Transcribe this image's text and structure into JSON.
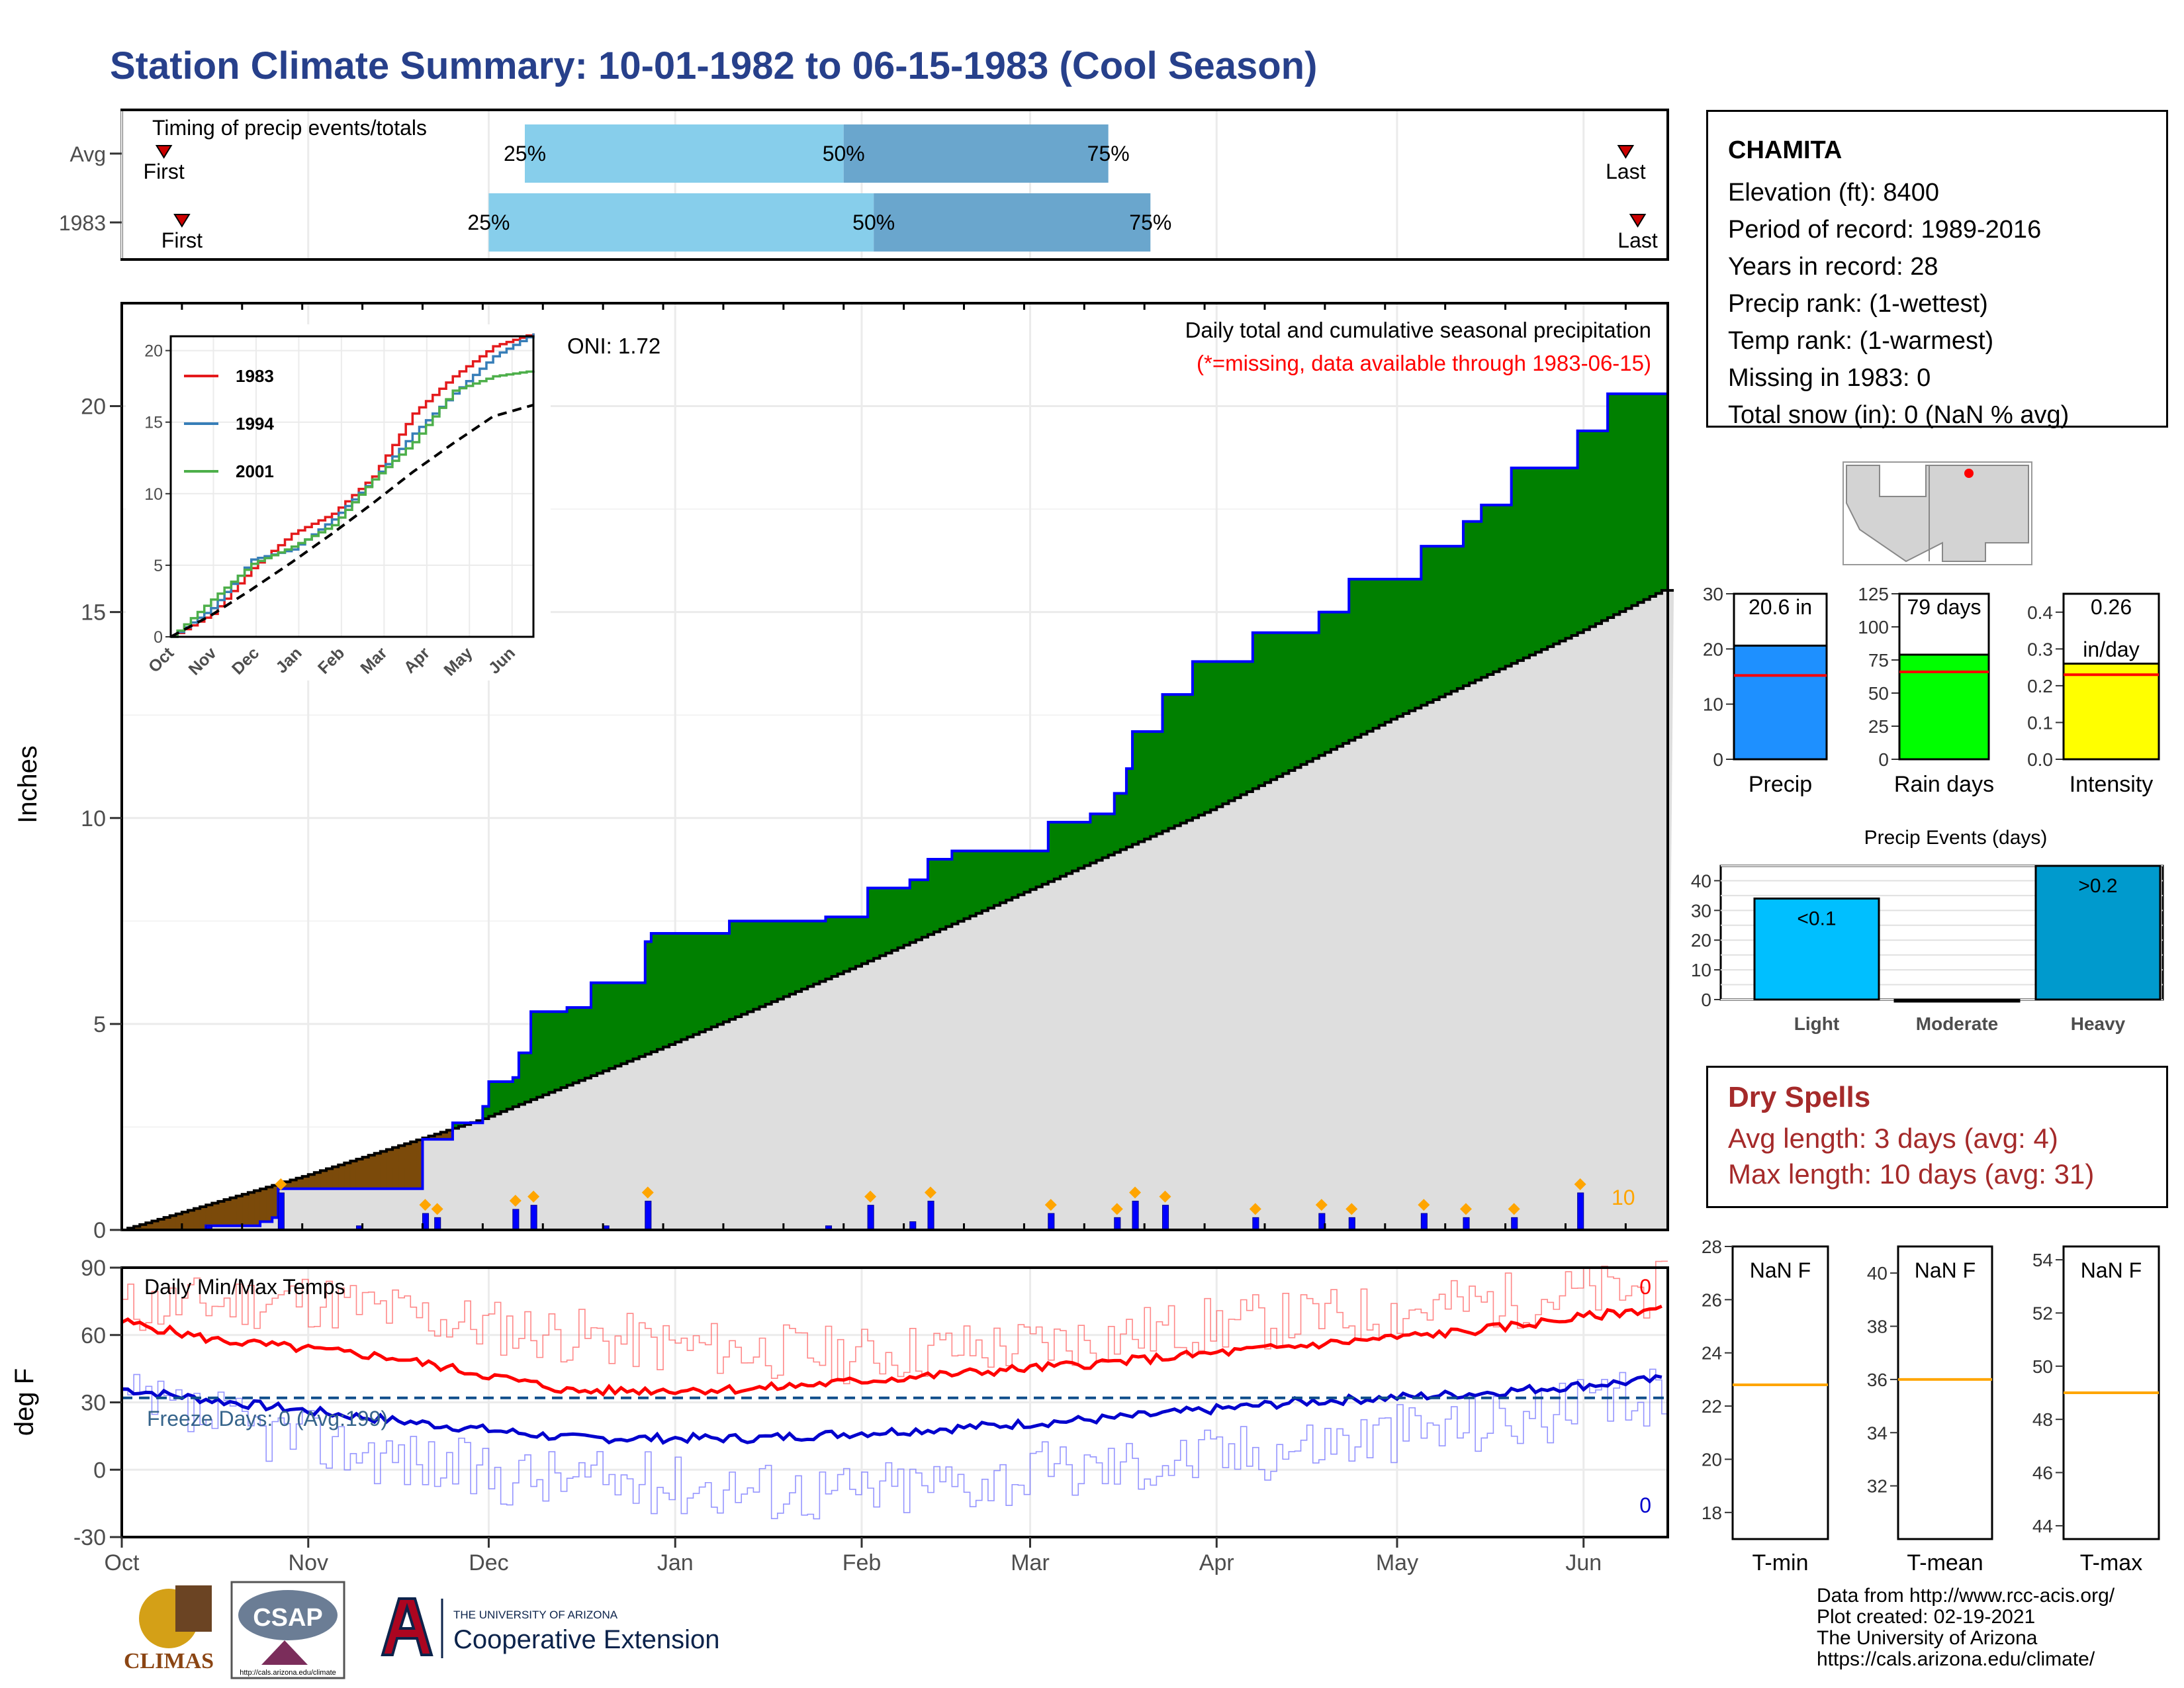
{
  "title": "Station Climate Summary: 10-01-1982 to 06-15-1983 (Cool Season)",
  "station": {
    "name": "CHAMITA",
    "lines": [
      "Elevation (ft): 8400",
      "Period of record: 1989-2016",
      "Years in record: 28",
      "Precip rank:  (1-wettest)",
      "Temp rank:  (1-warmest)",
      "Missing in 1983: 0",
      "Total snow (in): 0 (NaN % avg)"
    ]
  },
  "dry_spells": {
    "title": "Dry Spells",
    "avg": "Avg length: 3 days (avg: 4)",
    "max": "Max length: 10 days (avg: 31)"
  },
  "credits": [
    "Data from http://www.rcc-acis.org/",
    "Plot created: 02-19-2021",
    "The University of Arizona",
    "https://cals.arizona.edu/climate/"
  ],
  "logos": {
    "climas": "CLIMAS",
    "csap": "CSAP",
    "csap_url": "http://cals.arizona.edu/climate",
    "ua_small": "THE UNIVERSITY OF ARIZONA",
    "ua_big": "Cooperative Extension"
  },
  "colors": {
    "title": "#27408b",
    "green": "#008000",
    "brown": "#7b4a0a",
    "cumBlue": "#0000ff",
    "normGray": "#dedede",
    "red": "#ff0000",
    "dryRed": "#a52a2a",
    "lightBlue": "#87ceeb",
    "midBlue": "#6aa6cd",
    "precipBar": "#1e90ff",
    "rainBar": "#00ff00",
    "intBar": "#ffff00",
    "lightEv": "#00bfff",
    "heavyEv": "#009acd",
    "orange": "#ffa500"
  },
  "chart_data": [
    {
      "id": "timing",
      "type": "bar",
      "panel_title": "Timing of precip events/totals",
      "rows": [
        {
          "label": "Avg",
          "first": "10-08",
          "p25": "12-07",
          "p50": "01-29",
          "p75": "03-14",
          "last": "06-08",
          "first_label": "First",
          "last_label": "Last",
          "pct_labels": [
            "25%",
            "50%",
            "75%"
          ]
        },
        {
          "label": "1983",
          "first": "10-11",
          "p25": "12-01",
          "p50": "02-03",
          "p75": "03-21",
          "last": "06-10",
          "first_label": "First",
          "last_label": "Last",
          "pct_labels": [
            "25%",
            "50%",
            "75%"
          ]
        }
      ]
    },
    {
      "id": "cumulative",
      "type": "area",
      "title": "Daily total and cumulative seasonal precipitation",
      "subtitle": "(*=missing, data available through 1983-06-15)",
      "ylabel": "Inches",
      "ylim": [
        0,
        22.5
      ],
      "yticks": [
        0,
        5,
        10,
        15,
        20
      ],
      "xticks": [
        "Oct",
        "Nov",
        "Dec",
        "Jan",
        "Feb",
        "Mar",
        "Apr",
        "May",
        "Jun"
      ],
      "oni": "ONI: 1.72",
      "snow_marker_label": "10",
      "observed_cumulative": [
        [
          "10-01",
          0
        ],
        [
          "10-15",
          0.1
        ],
        [
          "10-24",
          0.2
        ],
        [
          "10-26",
          0.3
        ],
        [
          "10-27",
          1.0
        ],
        [
          "11-09",
          1.0
        ],
        [
          "11-16",
          1.0
        ],
        [
          "11-20",
          2.2
        ],
        [
          "11-25",
          2.6
        ],
        [
          "11-30",
          3.0
        ],
        [
          "12-01",
          3.6
        ],
        [
          "12-05",
          3.7
        ],
        [
          "12-06",
          4.3
        ],
        [
          "12-08",
          5.3
        ],
        [
          "12-14",
          5.4
        ],
        [
          "12-18",
          6.0
        ],
        [
          "12-26",
          6.0
        ],
        [
          "12-27",
          7.0
        ],
        [
          "12-28",
          7.2
        ],
        [
          "01-10",
          7.5
        ],
        [
          "01-26",
          7.6
        ],
        [
          "02-02",
          8.3
        ],
        [
          "02-09",
          8.5
        ],
        [
          "02-12",
          9.0
        ],
        [
          "02-16",
          9.2
        ],
        [
          "03-04",
          9.9
        ],
        [
          "03-11",
          10.1
        ],
        [
          "03-15",
          10.6
        ],
        [
          "03-17",
          11.2
        ],
        [
          "03-18",
          12.1
        ],
        [
          "03-23",
          13.0
        ],
        [
          "03-28",
          13.8
        ],
        [
          "04-07",
          14.5
        ],
        [
          "04-18",
          15.0
        ],
        [
          "04-23",
          15.8
        ],
        [
          "05-05",
          16.6
        ],
        [
          "05-12",
          17.2
        ],
        [
          "05-15",
          17.6
        ],
        [
          "05-20",
          18.5
        ],
        [
          "05-31",
          19.4
        ],
        [
          "06-05",
          20.3
        ],
        [
          "06-15",
          20.6
        ]
      ],
      "normal_cumulative": [
        [
          "10-01",
          0
        ],
        [
          "10-31",
          1.3
        ],
        [
          "11-30",
          2.7
        ],
        [
          "12-31",
          4.5
        ],
        [
          "01-31",
          6.4
        ],
        [
          "02-28",
          8.2
        ],
        [
          "03-31",
          10.2
        ],
        [
          "04-30",
          12.4
        ],
        [
          "05-31",
          14.5
        ],
        [
          "06-15",
          15.6
        ]
      ],
      "daily_bars": [
        [
          "10-15",
          0.1
        ],
        [
          "10-27",
          0.9
        ],
        [
          "11-09",
          0.1
        ],
        [
          "11-20",
          0.4
        ],
        [
          "11-22",
          0.3
        ],
        [
          "12-05",
          0.5
        ],
        [
          "12-08",
          0.6
        ],
        [
          "12-20",
          0.1
        ],
        [
          "12-27",
          0.7
        ],
        [
          "01-26",
          0.1
        ],
        [
          "02-02",
          0.6
        ],
        [
          "02-09",
          0.2
        ],
        [
          "02-12",
          0.7
        ],
        [
          "03-04",
          0.4
        ],
        [
          "03-15",
          0.3
        ],
        [
          "03-18",
          0.7
        ],
        [
          "03-23",
          0.6
        ],
        [
          "04-07",
          0.3
        ],
        [
          "04-18",
          0.4
        ],
        [
          "04-23",
          0.3
        ],
        [
          "05-05",
          0.4
        ],
        [
          "05-12",
          0.3
        ],
        [
          "05-20",
          0.3
        ],
        [
          "05-31",
          0.9
        ]
      ]
    },
    {
      "id": "inset",
      "type": "line",
      "ylim": [
        0,
        21
      ],
      "yticks": [
        0,
        5,
        10,
        15,
        20
      ],
      "xticks": [
        "Oct",
        "Nov",
        "Dec",
        "Jan",
        "Feb",
        "Mar",
        "Apr",
        "May",
        "Jun"
      ],
      "series": [
        {
          "name": "1983",
          "color": "#e41a1c",
          "values": [
            0,
            1.6,
            4.8,
            7.2,
            8.6,
            11.2,
            15.6,
            18.2,
            20.3,
            21.2
          ]
        },
        {
          "name": "1994",
          "color": "#377eb8",
          "values": [
            0,
            2.0,
            5.4,
            6.1,
            8.2,
            11.0,
            14.2,
            17.0,
            19.6,
            21.2
          ]
        },
        {
          "name": "2001",
          "color": "#4daf4a",
          "values": [
            0,
            2.6,
            5.1,
            6.3,
            7.8,
            11.0,
            13.6,
            17.2,
            18.2,
            18.6
          ]
        },
        {
          "name": "",
          "color": "#000000",
          "values": [
            0,
            1.5,
            3.3,
            5.2,
            7.2,
            9.3,
            11.5,
            13.5,
            15.4,
            16.2
          ]
        }
      ]
    },
    {
      "id": "temps",
      "type": "line",
      "title": "Daily Min/Max Temps",
      "ylabel": "deg F",
      "ylim": [
        -30,
        90
      ],
      "yticks": [
        -30,
        0,
        30,
        60,
        90
      ],
      "xticks": [
        "Oct",
        "Nov",
        "Dec",
        "Jan",
        "Feb",
        "Mar",
        "Apr",
        "May",
        "Jun"
      ],
      "freeze_line": 32,
      "freeze_label": "Freeze Days: 0 (Avg:199)",
      "count_top": "0",
      "count_bottom": "0",
      "normal_max": [
        [
          0,
          66
        ],
        [
          15,
          58
        ],
        [
          45,
          50
        ],
        [
          75,
          35
        ],
        [
          105,
          36
        ],
        [
          135,
          42
        ],
        [
          165,
          48
        ],
        [
          195,
          55
        ],
        [
          225,
          62
        ],
        [
          255,
          72
        ]
      ],
      "normal_min": [
        [
          0,
          36
        ],
        [
          15,
          31
        ],
        [
          45,
          22
        ],
        [
          75,
          14
        ],
        [
          105,
          14
        ],
        [
          135,
          18
        ],
        [
          165,
          23
        ],
        [
          195,
          30
        ],
        [
          225,
          34
        ],
        [
          255,
          40
        ]
      ],
      "obs_max": [
        [
          0,
          72
        ],
        [
          30,
          76
        ],
        [
          60,
          64
        ],
        [
          90,
          55
        ],
        [
          120,
          51
        ],
        [
          150,
          55
        ],
        [
          180,
          64
        ],
        [
          210,
          70
        ],
        [
          240,
          78
        ],
        [
          255,
          80
        ]
      ],
      "obs_min": [
        [
          0,
          30
        ],
        [
          30,
          14
        ],
        [
          60,
          -2
        ],
        [
          90,
          -6
        ],
        [
          120,
          -10
        ],
        [
          150,
          -2
        ],
        [
          180,
          6
        ],
        [
          210,
          16
        ],
        [
          240,
          26
        ],
        [
          255,
          32
        ]
      ]
    },
    {
      "id": "precip-summary",
      "type": "bar",
      "bars": [
        {
          "name": "Precip",
          "value": 20.6,
          "label": "20.6 in",
          "avg": 15.2,
          "ylim": [
            0,
            30
          ],
          "yticks": [
            0,
            10,
            20,
            30
          ]
        },
        {
          "name": "Rain days",
          "value": 79,
          "label": "79 days",
          "avg": 66,
          "ylim": [
            0,
            125
          ],
          "yticks": [
            0,
            25,
            50,
            75,
            100,
            125
          ]
        },
        {
          "name": "Intensity",
          "value": 0.26,
          "label": "0.26",
          "label2": "in/day",
          "avg": 0.23,
          "ylim": [
            0,
            0.45
          ],
          "yticks": [
            0.0,
            0.1,
            0.2,
            0.3,
            0.4
          ]
        }
      ]
    },
    {
      "id": "precip-events",
      "type": "bar",
      "title": "Precip Events (days)",
      "categories": [
        "Light",
        "Moderate",
        "Heavy"
      ],
      "values": [
        34,
        0,
        45
      ],
      "bar_labels": [
        "<0.1",
        "",
        ">0.2"
      ],
      "ylim": [
        0,
        45
      ],
      "yticks": [
        0,
        10,
        20,
        30,
        40
      ]
    },
    {
      "id": "temp-summary",
      "type": "bar",
      "bars": [
        {
          "name": "T-min",
          "label": "NaN F",
          "avg": 22.8,
          "ylim": [
            17,
            28
          ],
          "yticks": [
            18,
            20,
            22,
            24,
            26,
            28
          ]
        },
        {
          "name": "T-mean",
          "label": "NaN F",
          "avg": 36.0,
          "ylim": [
            30,
            41
          ],
          "yticks": [
            32,
            34,
            36,
            38,
            40
          ]
        },
        {
          "name": "T-max",
          "label": "NaN F",
          "avg": 49.0,
          "ylim": [
            43.5,
            54.5
          ],
          "yticks": [
            44,
            46,
            48,
            50,
            52,
            54
          ]
        }
      ]
    }
  ]
}
